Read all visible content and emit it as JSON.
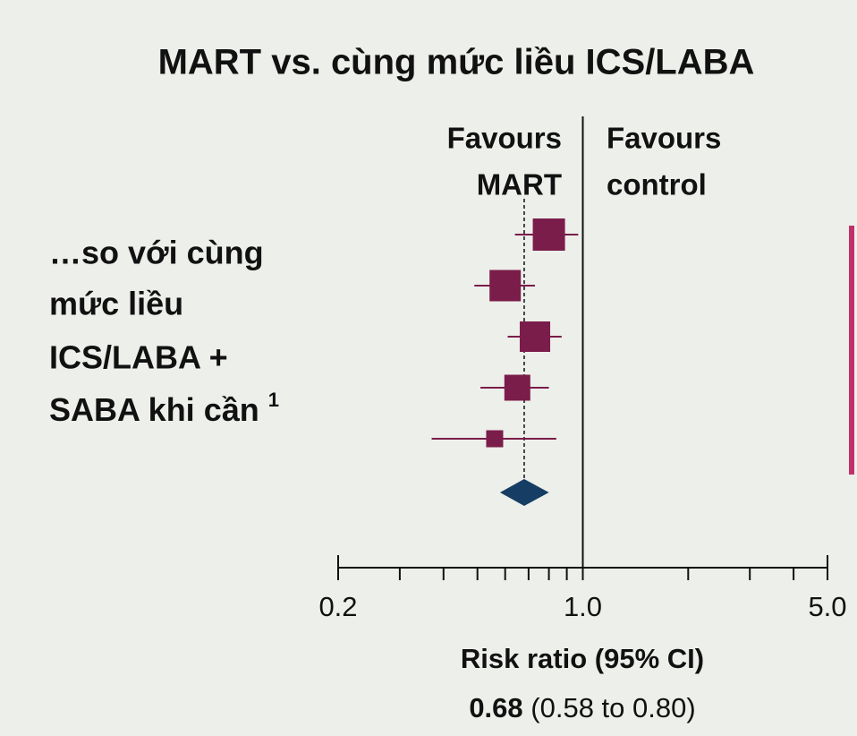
{
  "chart_data": {
    "type": "forest",
    "title": "MART vs. cùng mức liều ICS/LABA",
    "left_text": [
      "…so với cùng",
      "mức liều",
      "ICS/LABA +",
      "SABA khi cần"
    ],
    "left_text_superscript": "1",
    "favours_left": [
      "Favours",
      "MART"
    ],
    "favours_right": [
      "Favours",
      "control"
    ],
    "x_label": "Risk ratio (95% CI)",
    "xscale": "log",
    "xlim": [
      0.2,
      5.0
    ],
    "xticks": [
      {
        "value": 0.2,
        "label": "0.2"
      },
      {
        "value": 1.0,
        "label": "1.0"
      },
      {
        "value": 5.0,
        "label": "5.0"
      }
    ],
    "xticks_minor": [
      0.3,
      0.4,
      0.5,
      0.6,
      0.7,
      0.8,
      0.9,
      2,
      3,
      4
    ],
    "reference_line": 1.0,
    "color": "#7a1d4a",
    "pooled_color": "#163d63",
    "estimates": [
      0.8,
      0.6,
      0.73,
      0.65,
      0.56
    ],
    "ci_low": [
      0.64,
      0.49,
      0.61,
      0.51,
      0.37
    ],
    "ci_high": [
      0.97,
      0.73,
      0.87,
      0.8,
      0.84
    ],
    "weights": [
      36,
      35,
      34,
      29,
      19
    ],
    "pooled": {
      "value": 0.68,
      "low": 0.58,
      "high": 0.8,
      "ci_label": "(0.58 to 0.80)"
    }
  }
}
